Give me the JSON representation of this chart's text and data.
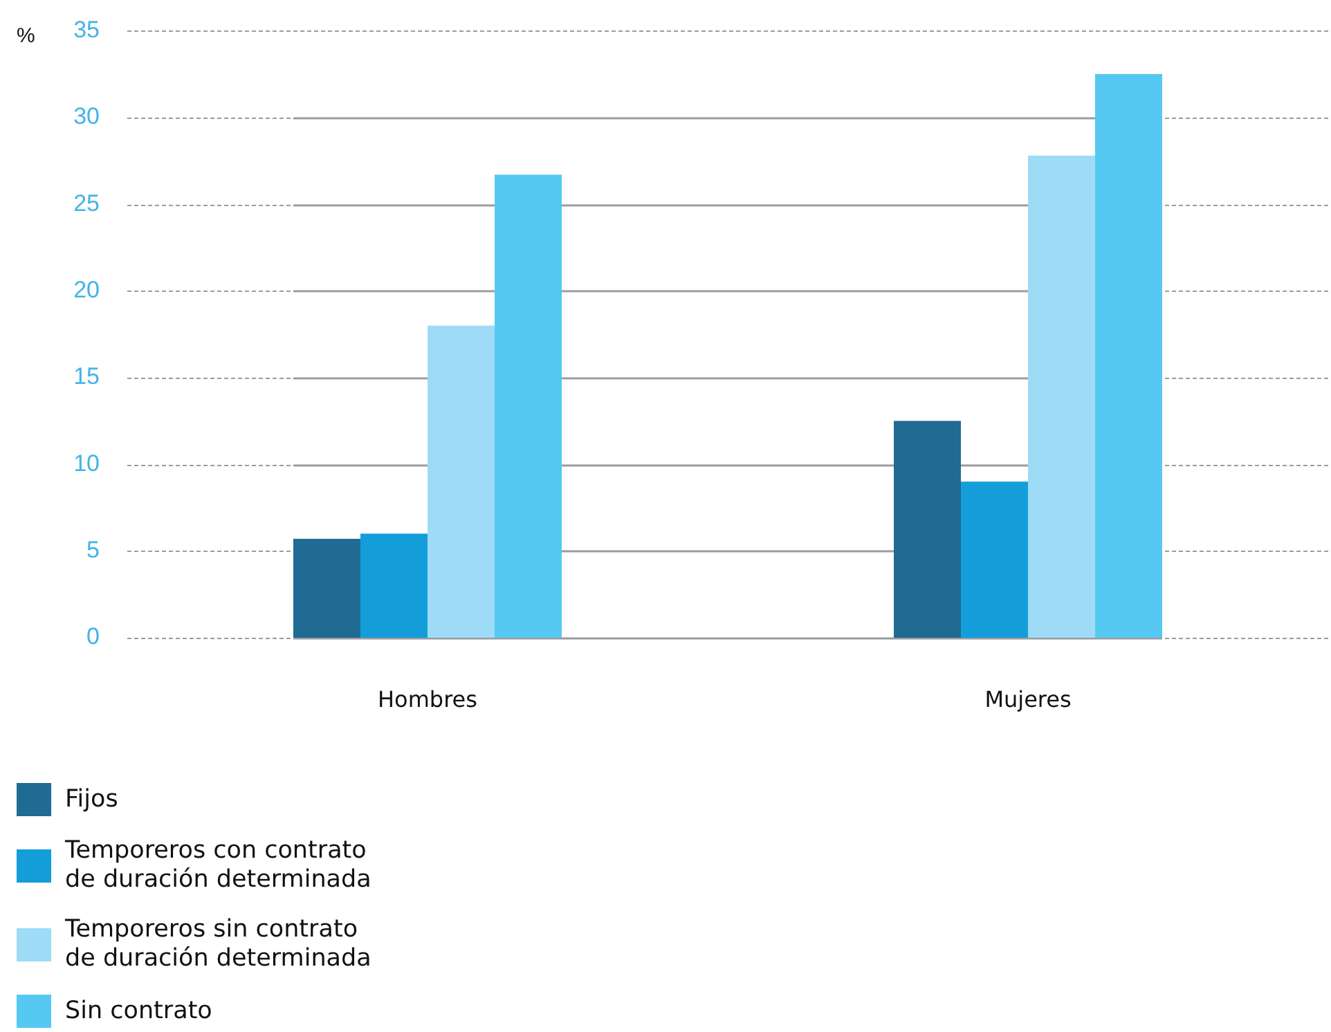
{
  "chart_data": {
    "type": "bar",
    "ylabel": "%",
    "categories": [
      "Hombres",
      "Mujeres"
    ],
    "series": [
      {
        "name": "Fijos",
        "color": "#1f6b93",
        "values": [
          5.7,
          12.5
        ]
      },
      {
        "name": "Temporeros con contrato de duración determinada",
        "color": "#139ed9",
        "values": [
          6.0,
          9.0
        ]
      },
      {
        "name": "Temporeros sin contrato de duración determinada",
        "color": "#9ddbf6",
        "values": [
          18.0,
          27.8
        ]
      },
      {
        "name": "Sin contrato",
        "color": "#55c9f2",
        "values": [
          26.7,
          32.5
        ]
      }
    ],
    "ylim": [
      0,
      35
    ],
    "yticks": [
      0,
      5,
      10,
      15,
      20,
      25,
      30,
      35
    ],
    "grid": "y",
    "legend": "bottom left"
  }
}
